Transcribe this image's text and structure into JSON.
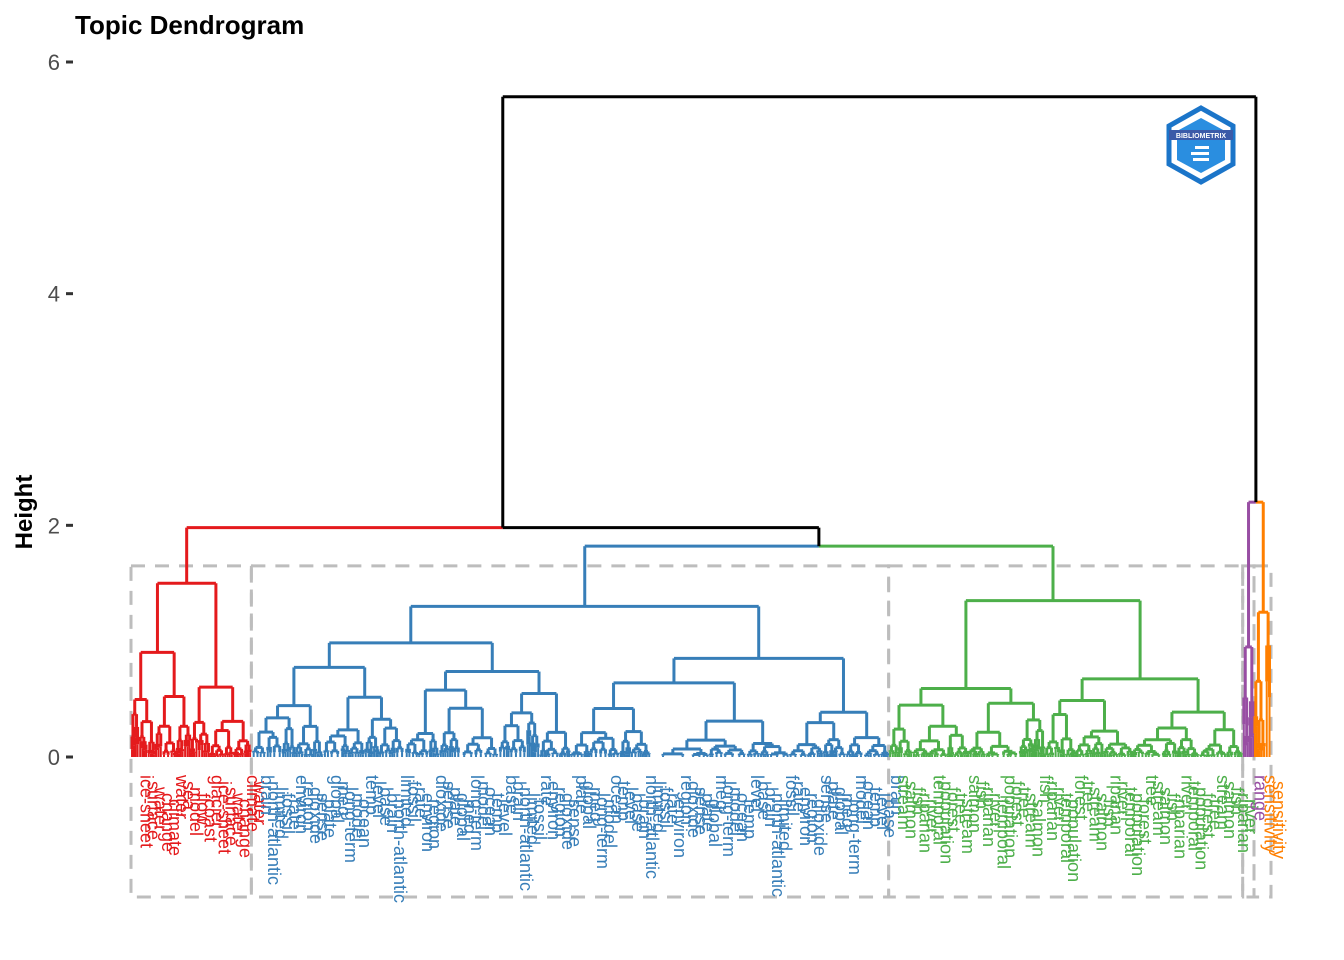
{
  "chart_data": {
    "type": "dendrogram",
    "title": "Topic Dendrogram",
    "ylabel": "Height",
    "xlabel": "",
    "ylim": [
      0,
      6
    ],
    "yticks": [
      0,
      2,
      4,
      6
    ],
    "cut_height": 1.65,
    "grid": false,
    "root": {
      "height": 5.7
    },
    "clusters": [
      {
        "color": "#E41A1C",
        "merge_height": 1.98,
        "leaf_share": 0.085,
        "visible_labels": [
          "ice-sheet",
          "surface",
          "water",
          "change",
          "climate",
          "water",
          "sea",
          "model",
          "flow",
          "coast",
          "glacier"
        ]
      },
      {
        "color": "#377EB8",
        "merge_height": 1.82,
        "leaf_share": 0.45,
        "visible_labels": [
          "brain",
          "north-atlantic",
          "limited",
          "fossil",
          "rate",
          "environ",
          "region",
          "dioxide",
          "sense",
          "plate",
          "global",
          "meq",
          "long-term",
          "model",
          "ocean",
          "temp",
          "level",
          "base"
        ]
      },
      {
        "color": "#4DAF4A",
        "merge_height": 1.82,
        "leaf_share": 0.25,
        "visible_labels": [
          "stream",
          "salmon",
          "fish",
          "riparian",
          "river",
          "temporal",
          "population",
          "forest",
          "tree"
        ]
      },
      {
        "color": "#984EA3",
        "merge_height": 2.2,
        "leaf_share": 0.008,
        "visible_labels": [
          "range"
        ]
      },
      {
        "color": "#FF7F00",
        "merge_height": 2.2,
        "leaf_share": 0.012,
        "visible_labels": [
          "sensitivity"
        ]
      }
    ],
    "structure": {
      "top_merge": {
        "left": "red_blue_green",
        "right": "purple_orange",
        "height": 5.7
      },
      "red_blue_green": {
        "left": "red",
        "right": "blue_green",
        "height": 1.98
      },
      "blue_green": {
        "left": "blue",
        "right": "green",
        "height": 1.82
      },
      "purple_orange": {
        "left": "purple",
        "right": "orange",
        "height": 2.2
      }
    },
    "logo": "bibliometrix-logo"
  },
  "logo_text": "BIBLIOMETRIX"
}
